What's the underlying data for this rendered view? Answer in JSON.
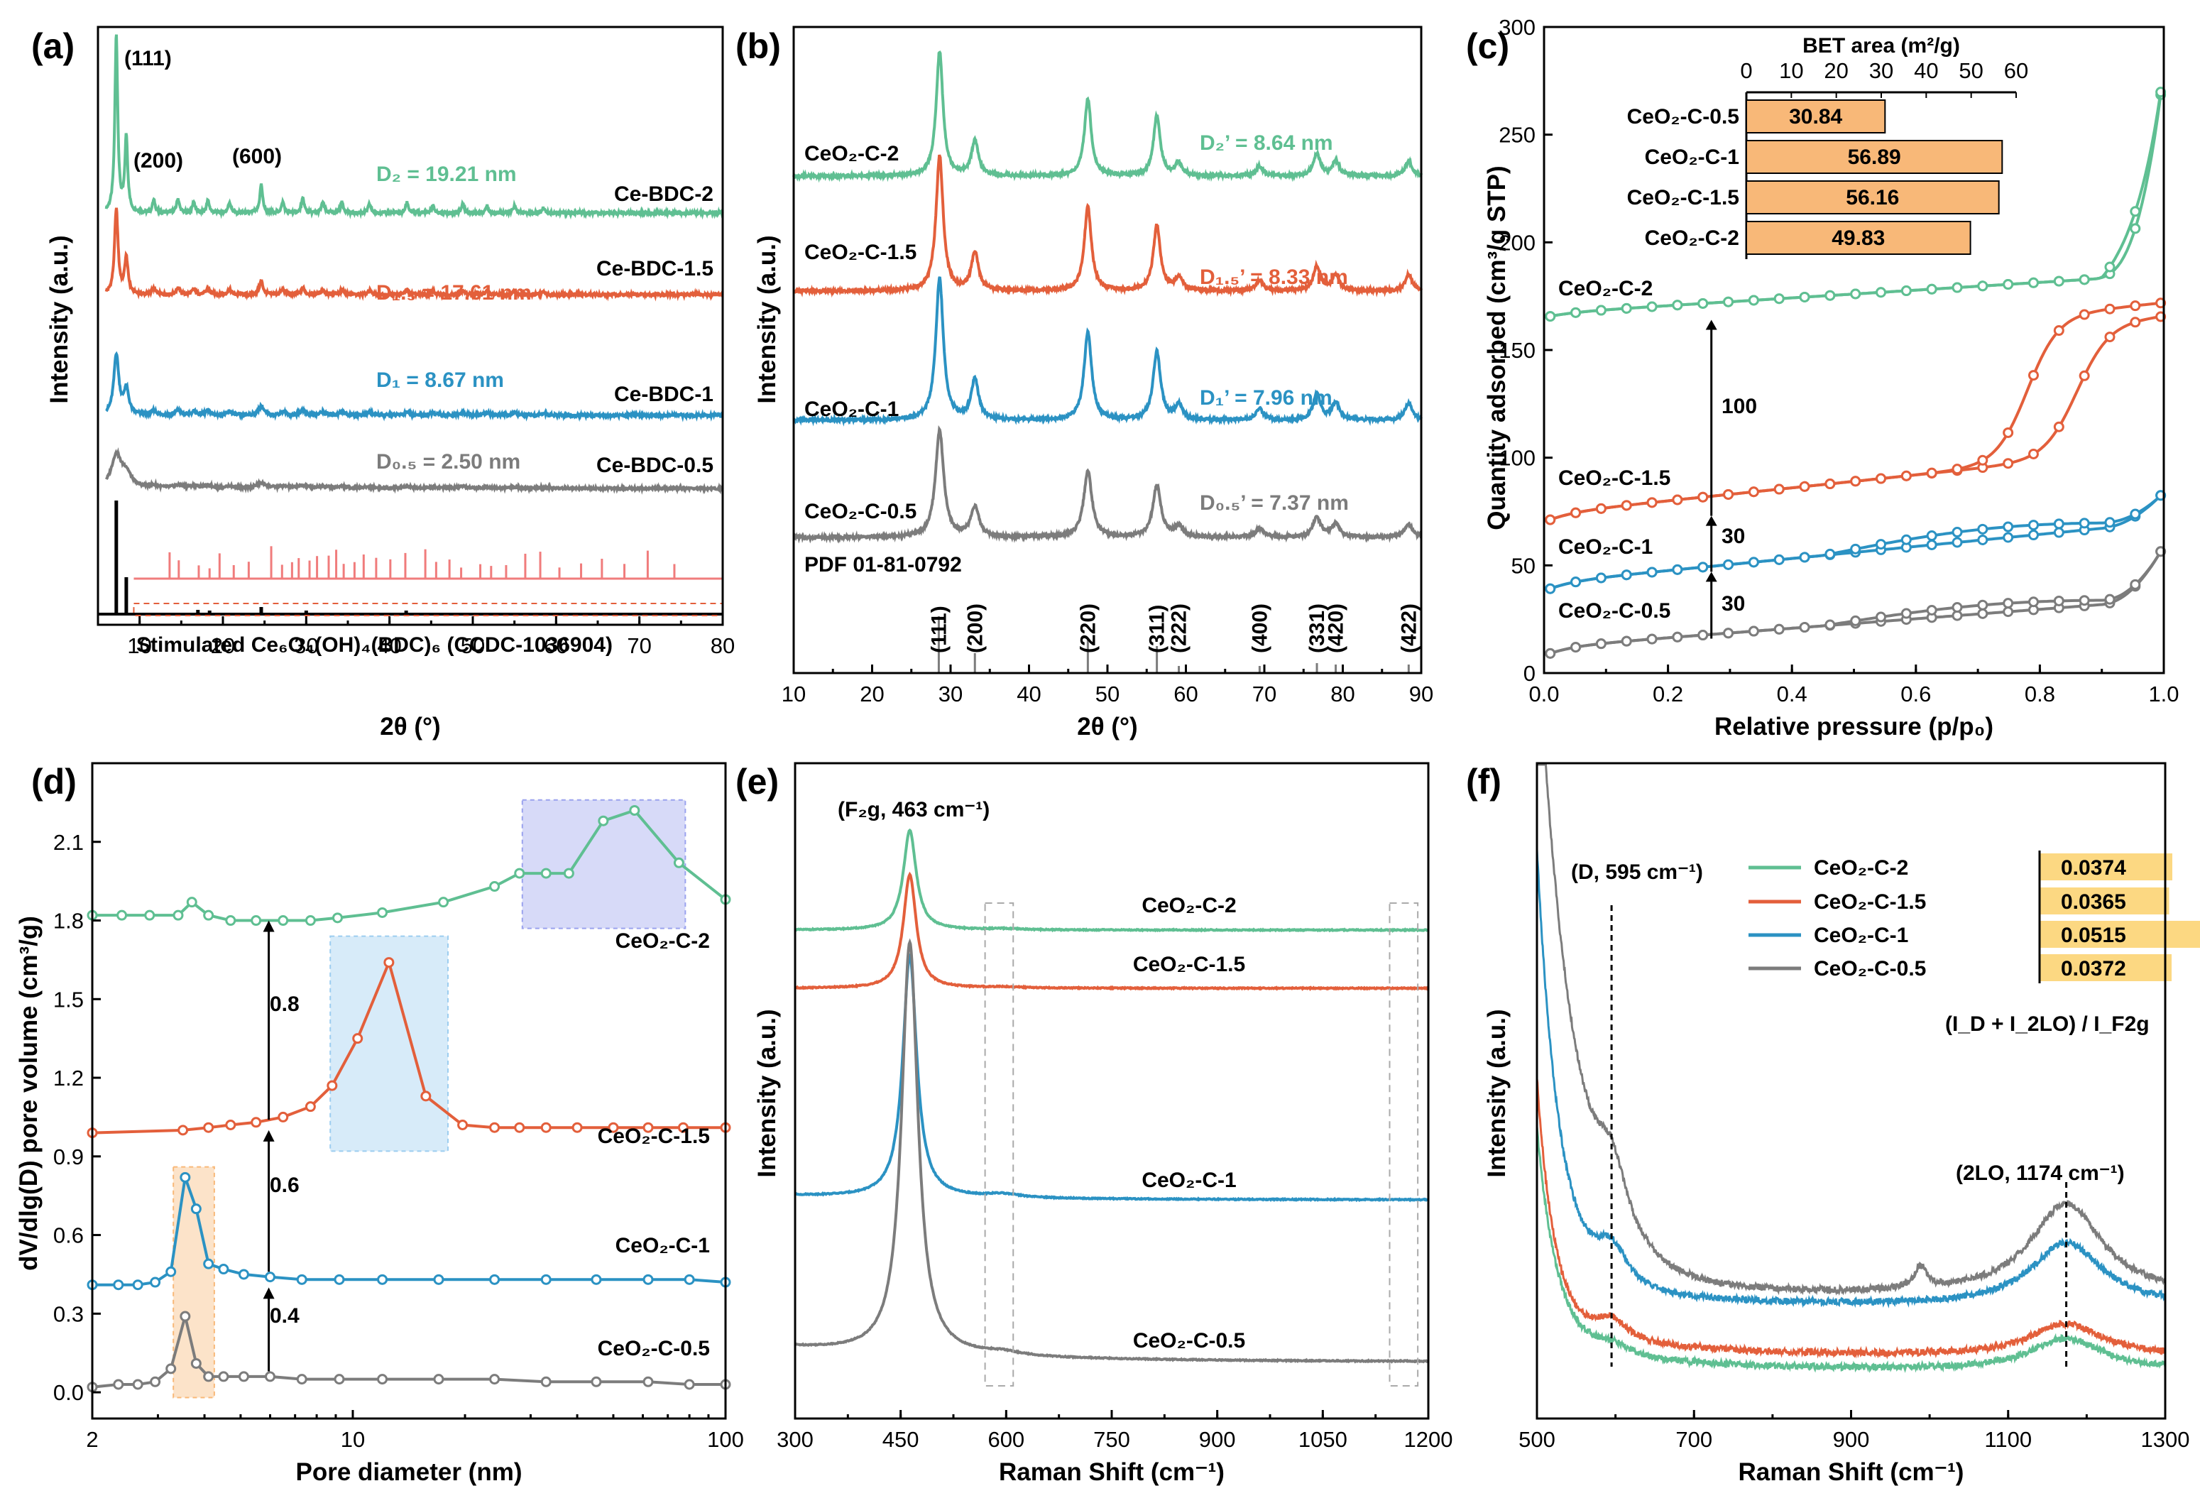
{
  "chart_data": [
    {
      "id": "a",
      "panel_label": "(a)",
      "type": "line",
      "title": "",
      "xlabel": "2θ (°)",
      "ylabel": "Intensity (a.u.)",
      "xlim": [
        5,
        80
      ],
      "xticks": [
        "10",
        "20",
        "30",
        "40",
        "50",
        "60",
        "70",
        "80"
      ],
      "peak_labels": [
        "(111)",
        "(200)",
        "(600)"
      ],
      "series": [
        {
          "name": "Ce-BDC-2",
          "crystallite_label": "D₂ = 19.21 nm",
          "color": "#5fbf92"
        },
        {
          "name": "Ce-BDC-1.5",
          "crystallite_label": "D₁.₅ = 17.61 nm",
          "color": "#e35f3b"
        },
        {
          "name": "Ce-BDC-1",
          "crystallite_label": "D₁ = 8.67 nm",
          "color": "#2b92c3"
        },
        {
          "name": "Ce-BDC-0.5",
          "crystallite_label": "D₀.₅ = 2.50 nm",
          "color": "#7c7c7c"
        }
      ],
      "reference_label": "Stimulated Ce₆O₄(OH)₄(BDC)₆ (CCDC-1036904)"
    },
    {
      "id": "b",
      "panel_label": "(b)",
      "type": "line",
      "title": "",
      "xlabel": "2θ (°)",
      "ylabel": "Intensity (a.u.)",
      "xlim": [
        10,
        90
      ],
      "xticks": [
        "10",
        "20",
        "30",
        "40",
        "50",
        "60",
        "70",
        "80",
        "90"
      ],
      "series": [
        {
          "name": "CeO₂-C-2",
          "crystallite_label": "D₂’ = 8.64 nm",
          "color": "#5fbf92"
        },
        {
          "name": "CeO₂-C-1.5",
          "crystallite_label": "D₁.₅’ = 8.33 nm",
          "color": "#e35f3b"
        },
        {
          "name": "CeO₂-C-1",
          "crystallite_label": "D₁’ = 7.96 nm",
          "color": "#2b92c3"
        },
        {
          "name": "CeO₂-C-0.5",
          "crystallite_label": "D₀.₅’ = 7.37 nm",
          "color": "#7c7c7c"
        }
      ],
      "reference_label": "PDF 01-81-0792",
      "reference_peaks": [
        {
          "hkl": "(111)",
          "x": 28.5
        },
        {
          "hkl": "(200)",
          "x": 33.1
        },
        {
          "hkl": "(220)",
          "x": 47.5
        },
        {
          "hkl": "(311)",
          "x": 56.3
        },
        {
          "hkl": "(222)",
          "x": 59.1
        },
        {
          "hkl": "(400)",
          "x": 69.4
        },
        {
          "hkl": "(331)",
          "x": 76.7
        },
        {
          "hkl": "(420)",
          "x": 79.1
        },
        {
          "hkl": "(422)",
          "x": 88.4
        }
      ]
    },
    {
      "id": "c",
      "panel_label": "(c)",
      "type": "line",
      "title": "",
      "xlabel": "Relative pressure (p/p₀)",
      "ylabel": "Quantity adsorbed (cm³/g STP)",
      "xlim": [
        0,
        1
      ],
      "ylim": [
        0,
        300
      ],
      "xticks": [
        "0.0",
        "0.2",
        "0.4",
        "0.6",
        "0.8",
        "1.0"
      ],
      "yticks": [
        "0",
        "50",
        "100",
        "150",
        "200",
        "250",
        "300"
      ],
      "series": [
        {
          "name": "CeO₂-C-2",
          "color": "#5fbf92",
          "offset": 160
        },
        {
          "name": "CeO₂-C-1.5",
          "color": "#e35f3b",
          "offset": 60
        },
        {
          "name": "CeO₂-C-1",
          "color": "#2b92c3",
          "offset": 30
        },
        {
          "name": "CeO₂-C-0.5",
          "color": "#7c7c7c",
          "offset": 0
        }
      ],
      "offset_labels": [
        "100",
        "30",
        "30"
      ],
      "inset": {
        "type": "bar",
        "title": "BET area (m²/g)",
        "xlim": [
          0,
          60
        ],
        "xticks": [
          "0",
          "10",
          "20",
          "30",
          "40",
          "50",
          "60"
        ],
        "categories": [
          "CeO₂-C-0.5",
          "CeO₂-C-1",
          "CeO₂-C-1.5",
          "CeO₂-C-2"
        ],
        "values": [
          30.84,
          56.89,
          56.16,
          49.83
        ],
        "value_labels": [
          "30.84",
          "56.89",
          "56.16",
          "49.83"
        ],
        "color": "#f8b878"
      }
    },
    {
      "id": "d",
      "panel_label": "(d)",
      "type": "line",
      "title": "",
      "xlabel": "Pore diameter (nm)",
      "ylabel": "dV/dlg(D) pore volume (cm³/g)",
      "xscale": "log",
      "xlim": [
        2,
        100
      ],
      "ylim": [
        -0.1,
        2.4
      ],
      "xticks": [
        "2",
        "10",
        "100"
      ],
      "yticks": [
        "0.0",
        "0.3",
        "0.6",
        "0.9",
        "1.2",
        "1.5",
        "1.8",
        "2.1"
      ],
      "series": [
        {
          "name": "CeO₂-C-2",
          "color": "#5fbf92",
          "offset": 1.8,
          "x": [
            2.0,
            2.4,
            2.85,
            3.4,
            3.7,
            4.1,
            4.7,
            5.5,
            6.5,
            7.7,
            9.1,
            12.0,
            17.5,
            24,
            28,
            33,
            38,
            47,
            57,
            75,
            100
          ],
          "y": [
            0.02,
            0.02,
            0.02,
            0.02,
            0.07,
            0.02,
            0.0,
            0.0,
            0.0,
            0.0,
            0.01,
            0.03,
            0.07,
            0.13,
            0.18,
            0.18,
            0.18,
            0.38,
            0.42,
            0.22,
            0.08
          ]
        },
        {
          "name": "CeO₂-C-1.5",
          "color": "#e35f3b",
          "offset": 1.0,
          "x": [
            2.0,
            3.5,
            4.1,
            4.7,
            5.5,
            6.5,
            7.7,
            8.8,
            10.3,
            12.5,
            15.7,
            19.7,
            24,
            28,
            33,
            40,
            50,
            62,
            77,
            100
          ],
          "y": [
            -0.01,
            0.0,
            0.01,
            0.02,
            0.03,
            0.05,
            0.09,
            0.17,
            0.35,
            0.64,
            0.13,
            0.02,
            0.01,
            0.01,
            0.01,
            0.01,
            0.01,
            0.01,
            0.01,
            0.01
          ]
        },
        {
          "name": "CeO₂-C-1",
          "color": "#2b92c3",
          "offset": 0.4,
          "x": [
            2.0,
            2.35,
            2.65,
            2.95,
            3.25,
            3.55,
            3.8,
            4.1,
            4.5,
            5.1,
            6.0,
            7.3,
            9.2,
            12,
            17,
            24,
            33,
            45,
            62,
            80,
            100
          ],
          "y": [
            0.01,
            0.01,
            0.01,
            0.02,
            0.06,
            0.42,
            0.3,
            0.09,
            0.07,
            0.05,
            0.04,
            0.03,
            0.03,
            0.03,
            0.03,
            0.03,
            0.03,
            0.03,
            0.03,
            0.03,
            0.02
          ]
        },
        {
          "name": "CeO₂-C-0.5",
          "color": "#7c7c7c",
          "offset": 0.0,
          "x": [
            2.0,
            2.35,
            2.65,
            2.95,
            3.25,
            3.55,
            3.8,
            4.1,
            4.5,
            5.1,
            6.0,
            7.3,
            9.2,
            12,
            17,
            24,
            33,
            45,
            62,
            80,
            100
          ],
          "y": [
            0.02,
            0.03,
            0.03,
            0.04,
            0.09,
            0.29,
            0.11,
            0.06,
            0.06,
            0.06,
            0.06,
            0.05,
            0.05,
            0.05,
            0.05,
            0.05,
            0.04,
            0.04,
            0.04,
            0.03,
            0.03
          ]
        }
      ],
      "offset_labels": [
        "0.8",
        "0.6",
        "0.4"
      ],
      "highlights": [
        {
          "x0": 3.3,
          "x1": 4.25,
          "y0": -0.02,
          "y1": 0.86,
          "color": "#f8b878"
        },
        {
          "x0": 8.7,
          "x1": 18.0,
          "y0": 0.92,
          "y1": 1.74,
          "color": "#9ccdf0"
        },
        {
          "x0": 28.5,
          "x1": 78.0,
          "y0": 1.77,
          "y1": 2.26,
          "color": "#9aa2ee"
        }
      ]
    },
    {
      "id": "e",
      "panel_label": "(e)",
      "type": "line",
      "title": "",
      "xlabel": "Raman Shift (cm⁻¹)",
      "ylabel": "Intensity (a.u.)",
      "xlim": [
        300,
        1200
      ],
      "xticks": [
        "300",
        "450",
        "600",
        "750",
        "900",
        "1050",
        "1200"
      ],
      "peak_label": "(F₂g, 463 cm⁻¹)",
      "series": [
        {
          "name": "CeO₂-C-2",
          "color": "#5fbf92"
        },
        {
          "name": "CeO₂-C-1.5",
          "color": "#e35f3b"
        },
        {
          "name": "CeO₂-C-1",
          "color": "#2b92c3"
        },
        {
          "name": "CeO₂-C-0.5",
          "color": "#7c7c7c"
        }
      ]
    },
    {
      "id": "f",
      "panel_label": "(f)",
      "type": "line",
      "title": "",
      "xlabel": "Raman Shift (cm⁻¹)",
      "ylabel": "Intensity (a.u.)",
      "xlim": [
        500,
        1300
      ],
      "xticks": [
        "500",
        "700",
        "900",
        "1100",
        "1300"
      ],
      "markers": [
        {
          "label": "(D, 595 cm⁻¹)",
          "x": 595
        },
        {
          "label": "(2LO, 1174 cm⁻¹)",
          "x": 1174
        }
      ],
      "series": [
        {
          "name": "CeO₂-C-2",
          "color": "#5fbf92",
          "ratio": 0.0374,
          "ratio_label": "0.0374"
        },
        {
          "name": "CeO₂-C-1.5",
          "color": "#e35f3b",
          "ratio": 0.0365,
          "ratio_label": "0.0365"
        },
        {
          "name": "CeO₂-C-1",
          "color": "#2b92c3",
          "ratio": 0.0515,
          "ratio_label": "0.0515"
        },
        {
          "name": "CeO₂-C-0.5",
          "color": "#7c7c7c",
          "ratio": 0.0372,
          "ratio_label": "0.0372"
        }
      ],
      "ratio_axis_label": "(I_D + I_2LO) / I_F2g",
      "ratio_bar_color": "#fcd882"
    }
  ]
}
